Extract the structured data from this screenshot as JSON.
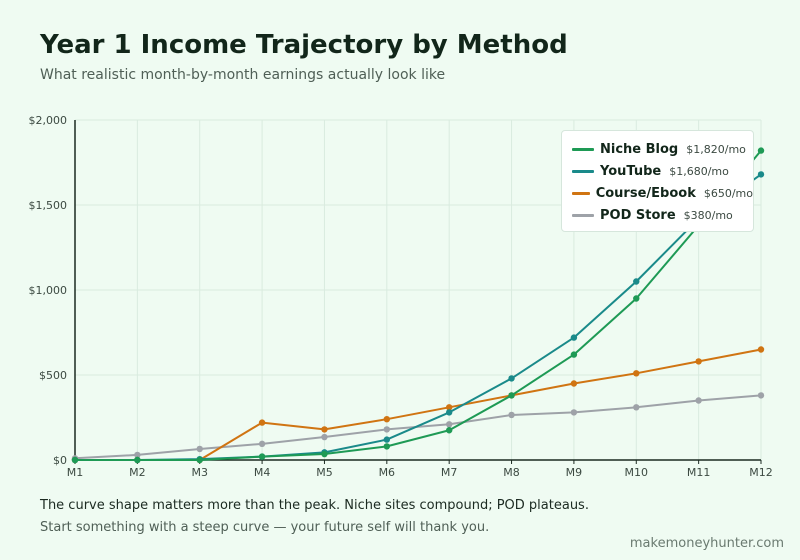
{
  "title": "Year 1 Income Trajectory by Method",
  "subtitle": "What realistic month-by-month earnings actually look like",
  "notes": {
    "line1": "The curve shape matters more than the peak. Niche sites compound; POD plateaus.",
    "line2": "Start something with a steep curve — your future self will thank you."
  },
  "source": "makemoneyhunter.com",
  "chart_data": {
    "type": "line",
    "x": [
      "M1",
      "M2",
      "M3",
      "M4",
      "M5",
      "M6",
      "M7",
      "M8",
      "M9",
      "M10",
      "M11",
      "M12"
    ],
    "ylim": [
      0,
      2000
    ],
    "yticks": [
      0,
      500,
      1000,
      1500,
      2000
    ],
    "ytick_labels": [
      "$0",
      "$500",
      "$1,000",
      "$1,500",
      "$2,000"
    ],
    "grid": true,
    "legend_position": "top-right",
    "series": [
      {
        "name": "Niche Blog",
        "label": "$1,820/mo",
        "color": "#1e9a55",
        "values": [
          0,
          0,
          0,
          20,
          35,
          80,
          175,
          380,
          620,
          950,
          1380,
          1820
        ]
      },
      {
        "name": "YouTube",
        "label": "$1,680/mo",
        "color": "#1a8a8a",
        "values": [
          0,
          0,
          5,
          20,
          45,
          120,
          280,
          480,
          720,
          1050,
          1420,
          1680
        ]
      },
      {
        "name": "Course/Ebook",
        "label": "$650/mo",
        "color": "#d07412",
        "values": [
          0,
          0,
          0,
          220,
          180,
          240,
          310,
          380,
          450,
          510,
          580,
          650
        ]
      },
      {
        "name": "POD Store",
        "label": "$380/mo",
        "color": "#9ea2a8",
        "values": [
          10,
          30,
          65,
          95,
          135,
          180,
          210,
          265,
          280,
          310,
          350,
          380
        ]
      }
    ]
  }
}
